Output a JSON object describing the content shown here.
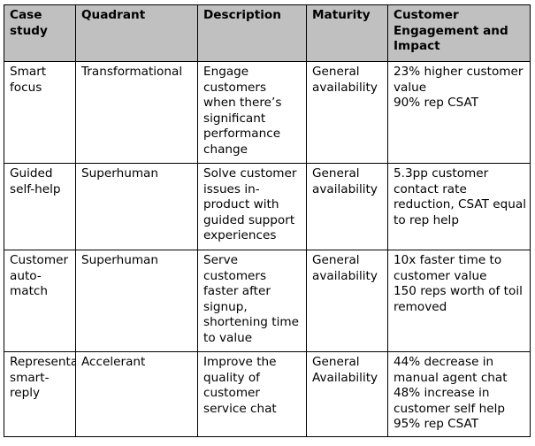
{
  "table": {
    "headers": [
      "Case study",
      "Quadrant",
      "Description",
      "Maturity",
      "Customer Engagement and Impact"
    ],
    "rows": [
      {
        "case_study": "Smart focus",
        "quadrant": "Transformational",
        "description": "Engage customers when there’s significant performance change",
        "maturity": "General availability",
        "impact": "23% higher customer value\n90% rep CSAT"
      },
      {
        "case_study": "Guided self-help",
        "quadrant": "Superhuman",
        "description": "Solve customer issues in-product with guided support experiences",
        "maturity": "General availability",
        "impact": "5.3pp customer contact rate reduction, CSAT equal to rep help"
      },
      {
        "case_study": "Customer auto-match",
        "quadrant": "Superhuman",
        "description": "Serve customers faster after signup, shortening time to value",
        "maturity": "General availability",
        "impact": "10x faster time to customer value\n150 reps worth of toil removed"
      },
      {
        "case_study": "Representative smart-reply",
        "quadrant": "Accelerant",
        "description": "Improve the quality of customer service chat",
        "maturity": "General Availability",
        "impact": "44% decrease in manual agent chat\n48% increase in customer self help\n95% rep CSAT"
      }
    ]
  }
}
